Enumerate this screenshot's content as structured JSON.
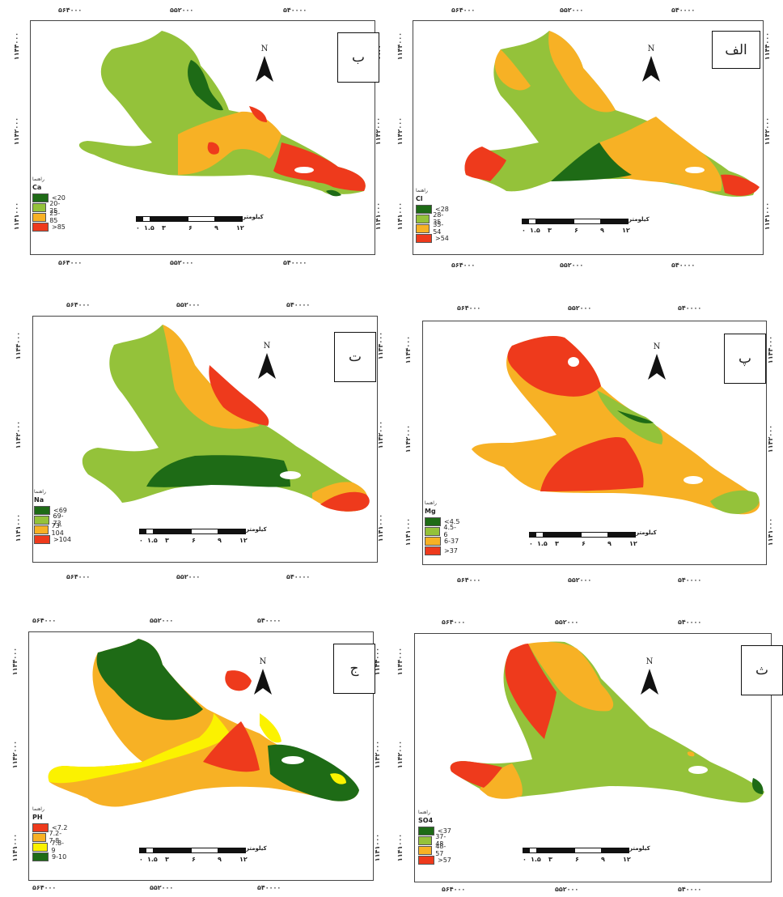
{
  "coords": {
    "x_labels": [
      "۵۶۴۰۰۰",
      "۵۵۲۰۰۰",
      "۵۴۰۰۰۰"
    ],
    "y_labels": [
      "۱۱۴۴۰۰۰",
      "۱۱۴۲۰۰۰",
      "۱۱۴۱۰۰۰"
    ]
  },
  "north_label": "N",
  "legend_title": "راهنما",
  "scale_unit": "کیلومتر",
  "scale_ticks": [
    "۰",
    "۱.۵",
    "۳",
    "۶",
    "۹",
    "۱۲"
  ],
  "colors": {
    "green": "#1e6b16",
    "lightgreen": "#94c23a",
    "orange": "#f7b125",
    "red": "#ee3a1c",
    "yellow": "#fbf200"
  },
  "panels": [
    {
      "id": "ca",
      "label": "ب",
      "variable": "Ca",
      "classes": [
        "<20",
        "20-25",
        "25-85",
        ">85"
      ]
    },
    {
      "id": "cl",
      "label": "الف",
      "variable": "Cl",
      "classes": [
        "<28",
        "28-35",
        "35-54",
        ">54"
      ]
    },
    {
      "id": "na",
      "label": "ت",
      "variable": "Na",
      "classes": [
        "<69",
        "69-73",
        "73-104",
        ">104"
      ]
    },
    {
      "id": "mg",
      "label": "پ",
      "variable": "Mg",
      "classes": [
        "<4.5",
        "4.5-6",
        "6-37",
        ">37"
      ]
    },
    {
      "id": "ph",
      "label": "ج",
      "variable": "PH",
      "classes": [
        "<7.2",
        "7.2-7.8",
        "7.8-9",
        "9-10"
      ]
    },
    {
      "id": "so4",
      "label": "ث",
      "variable": "SO4",
      "classes": [
        "<37",
        "37-48",
        "48-57",
        ">57"
      ]
    }
  ]
}
